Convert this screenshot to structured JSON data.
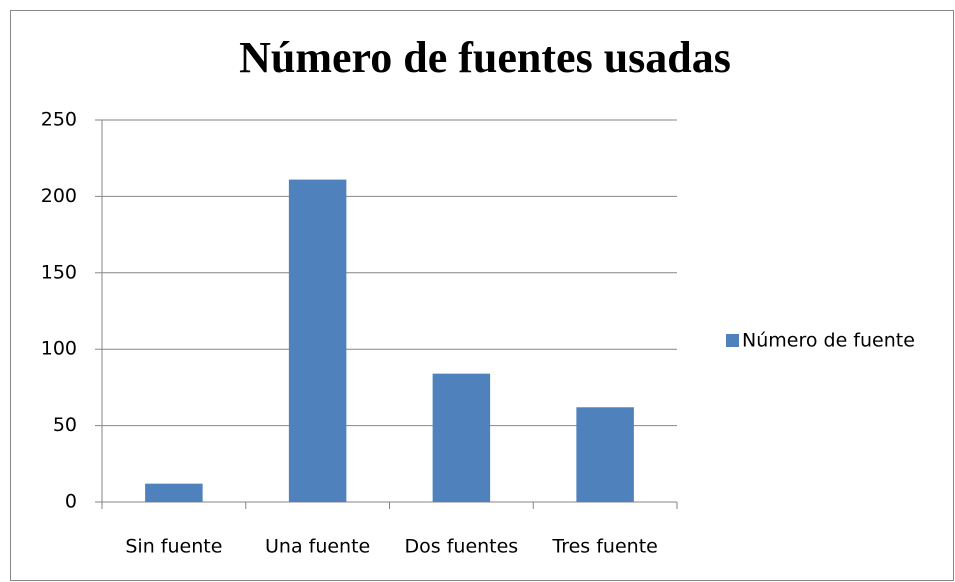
{
  "chart_data": {
    "type": "bar",
    "title": "Número de fuentes usadas",
    "categories": [
      "Sin fuente",
      "Una fuente",
      "Dos fuentes",
      "Tres fuente"
    ],
    "series": [
      {
        "name": "Número de fuente",
        "color": "#4f81bd",
        "values": [
          12,
          211,
          84,
          62
        ]
      }
    ],
    "ylim": [
      0,
      250
    ],
    "yticks": [
      0,
      50,
      100,
      150,
      200,
      250
    ],
    "grid": true,
    "legend": "right"
  }
}
